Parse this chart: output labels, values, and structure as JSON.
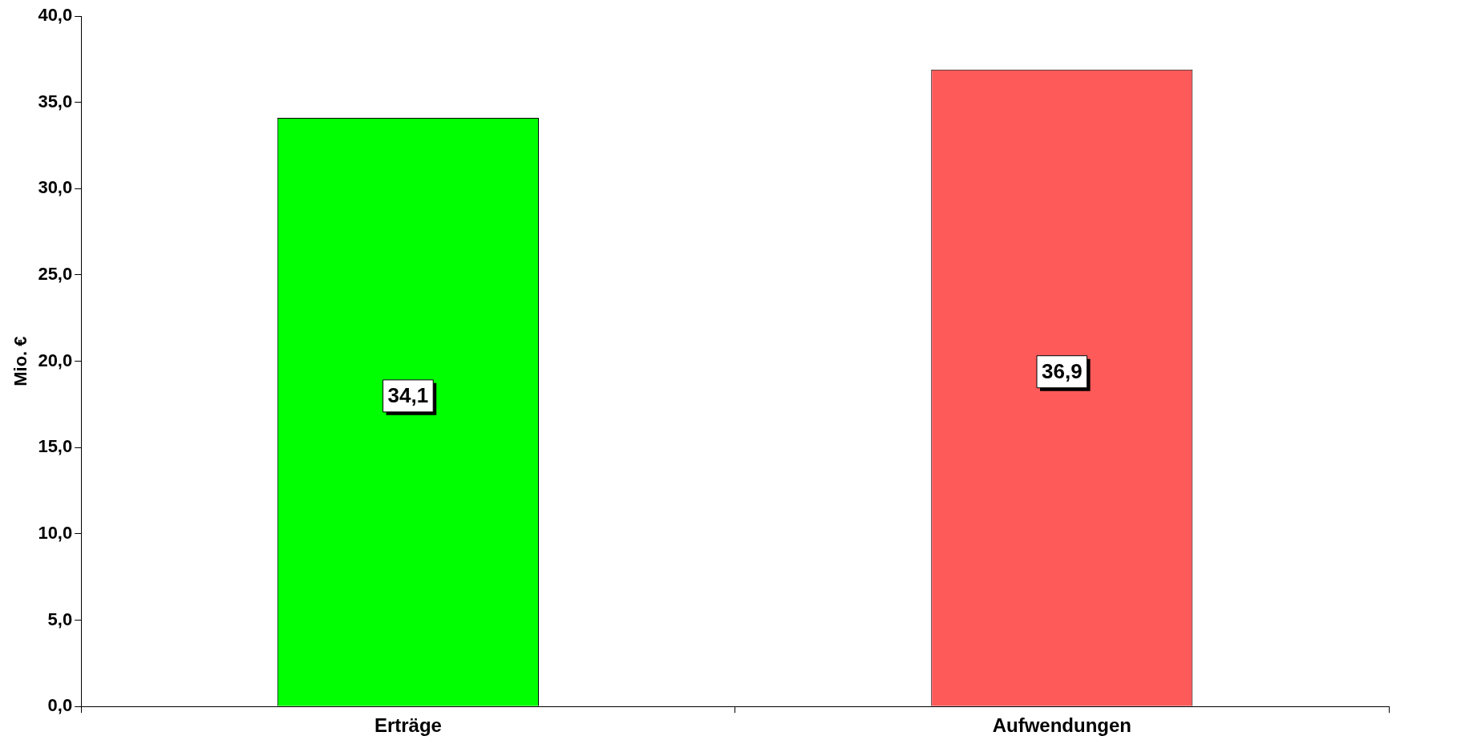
{
  "chart_data": {
    "type": "bar",
    "ylabel": "Mio. €",
    "categories": [
      "Erträge",
      "Aufwendungen"
    ],
    "values": [
      34.1,
      36.9
    ],
    "value_labels": [
      "34,1",
      "36,9"
    ],
    "colors": [
      "#00ff00",
      "#ff5a5a"
    ],
    "ylim": [
      0,
      40
    ],
    "yticks": [
      {
        "value": 0,
        "label": "0,0"
      },
      {
        "value": 5,
        "label": "5,0"
      },
      {
        "value": 10,
        "label": "10,0"
      },
      {
        "value": 15,
        "label": "15,0"
      },
      {
        "value": 20,
        "label": "20,0"
      },
      {
        "value": 25,
        "label": "25,0"
      },
      {
        "value": 30,
        "label": "30,0"
      },
      {
        "value": 35,
        "label": "35,0"
      },
      {
        "value": 40,
        "label": "40,0"
      }
    ],
    "grid": false,
    "legend": false
  }
}
